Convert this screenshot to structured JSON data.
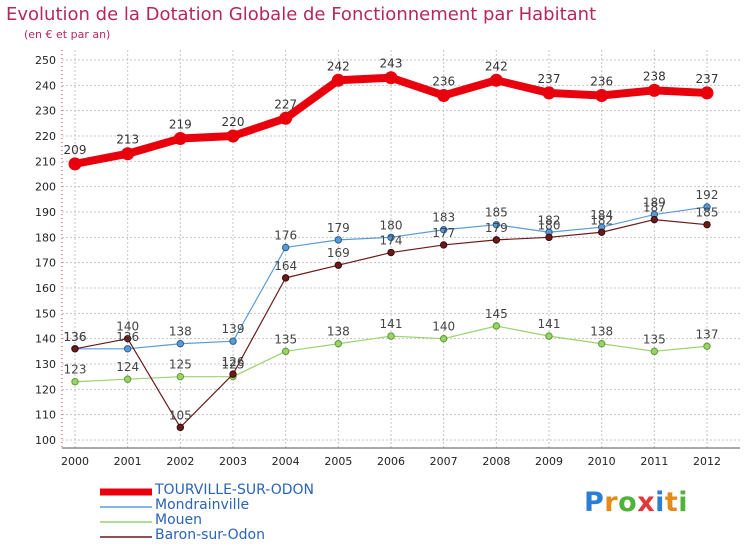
{
  "title": "Evolution de la Dotation Globale de Fonctionnement par Habitant",
  "subtitle": "(en € et par an)",
  "logo": "Proxiti",
  "colors": {
    "title": "#b5275e",
    "axis_text": "#222222",
    "grid": "#bbbbbb",
    "legend_text": "#2a63b8"
  },
  "chart_data": {
    "type": "line",
    "x": [
      "2000",
      "2001",
      "2002",
      "2003",
      "2004",
      "2005",
      "2006",
      "2007",
      "2008",
      "2009",
      "2010",
      "2011",
      "2012"
    ],
    "ylim": [
      100,
      250
    ],
    "yticks": [
      100,
      110,
      120,
      130,
      140,
      150,
      160,
      170,
      180,
      190,
      200,
      210,
      220,
      230,
      240,
      250
    ],
    "grid": true,
    "legend_position": "bottom-left",
    "series": [
      {
        "name": "TOURVILLE-SUR-ODON",
        "color": "#e8000d",
        "values": [
          209,
          213,
          219,
          220,
          227,
          242,
          243,
          236,
          242,
          237,
          236,
          238,
          237
        ]
      },
      {
        "name": "Mondrainville",
        "color": "#5b9bd5",
        "values": [
          136,
          136,
          138,
          139,
          176,
          179,
          180,
          183,
          185,
          182,
          184,
          189,
          192
        ]
      },
      {
        "name": "Mouen",
        "color": "#9bd36b",
        "values": [
          123,
          124,
          125,
          125,
          135,
          138,
          141,
          140,
          145,
          141,
          138,
          135,
          137
        ]
      },
      {
        "name": "Baron-sur-Odon",
        "color": "#6b1a1a",
        "values": [
          136,
          140,
          105,
          126,
          164,
          169,
          174,
          177,
          179,
          180,
          182,
          187,
          185
        ]
      }
    ]
  }
}
